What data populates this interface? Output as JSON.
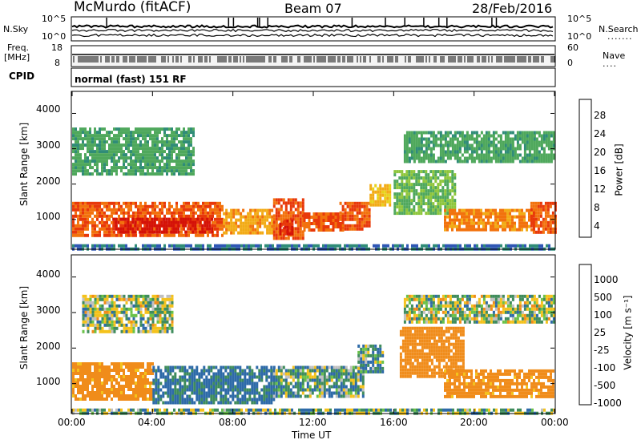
{
  "header": {
    "station": "McMurdo (fitACF)",
    "beam": "Beam 07",
    "date": "28/Feb/2016"
  },
  "noise_panel": {
    "left_label": "N.Sky",
    "right_label": "N.Search",
    "tick_top": "10^5",
    "tick_bottom": "10^0",
    "right_dots": "......."
  },
  "freq_panel": {
    "left_label_line1": "Freq.",
    "left_label_line2": "[MHz]",
    "left_tick_top": "18",
    "left_tick_bottom": "8",
    "right_label": "Nave",
    "right_tick_top": "60",
    "right_tick_bottom": "0",
    "right_dots": "...."
  },
  "cpid_panel": {
    "label": "CPID",
    "mode": "normal (fast) 151 RF"
  },
  "power_panel": {
    "ylabel": "Slant Range [km]",
    "yticks": [
      "1000",
      "2000",
      "3000",
      "4000"
    ],
    "colorbar_label": "Power [dB]",
    "colorbar_ticks": [
      "4",
      "8",
      "12",
      "16",
      "20",
      "24",
      "28"
    ],
    "colorbar_colors": [
      "#1313e8",
      "#2e56b4",
      "#2f8c77",
      "#4fa85c",
      "#8ec63c",
      "#e8d21a",
      "#f2ab16",
      "#f2720d",
      "#e8380a",
      "#d41108"
    ]
  },
  "velocity_panel": {
    "ylabel": "Slant Range [km]",
    "yticks": [
      "1000",
      "2000",
      "3000",
      "4000"
    ],
    "colorbar_label": "Velocity [m s⁻¹]",
    "colorbar_ticks": [
      "1000",
      "500",
      "100",
      "25",
      "-25",
      "-100",
      "-500",
      "-1000"
    ],
    "colorbar_colors": [
      "#1a36c8",
      "#2e6aa8",
      "#3f8c5c",
      "#6ac248",
      "#c0c0c0",
      "#f4c21c",
      "#f08c1a",
      "#e85a14",
      "#dc2a0c"
    ]
  },
  "x_axis": {
    "label": "Time UT",
    "ticks": [
      "00:00",
      "04:00",
      "08:00",
      "12:00",
      "16:00",
      "20:00",
      "00:00"
    ]
  },
  "chart_data": [
    {
      "type": "heatmap",
      "title": "Power [dB]",
      "xlabel": "Time UT",
      "ylabel": "Slant Range [km]",
      "xlim": [
        0,
        24
      ],
      "ylim": [
        180,
        4600
      ],
      "clim": [
        0,
        30
      ],
      "regions": [
        {
          "t0": 0.0,
          "t1": 7.5,
          "r0": 550,
          "r1": 1500,
          "value": 24
        },
        {
          "t0": 2.0,
          "t1": 7.0,
          "r0": 650,
          "r1": 1050,
          "value": 28
        },
        {
          "t0": 7.5,
          "t1": 10.0,
          "r0": 600,
          "r1": 1300,
          "value": 20
        },
        {
          "t0": 10.0,
          "t1": 11.5,
          "r0": 500,
          "r1": 1600,
          "value": 24
        },
        {
          "t0": 10.3,
          "t1": 11.0,
          "r0": 600,
          "r1": 1000,
          "value": 28
        },
        {
          "t0": 11.5,
          "t1": 13.5,
          "r0": 700,
          "r1": 1200,
          "value": 24
        },
        {
          "t0": 13.3,
          "t1": 14.8,
          "r0": 750,
          "r1": 1500,
          "value": 24
        },
        {
          "t0": 14.8,
          "t1": 15.8,
          "r0": 1400,
          "r1": 2000,
          "value": 18
        },
        {
          "t0": 16.0,
          "t1": 19.0,
          "r0": 1200,
          "r1": 2400,
          "value": 12
        },
        {
          "t0": 18.5,
          "t1": 23.0,
          "r0": 700,
          "r1": 1300,
          "value": 22
        },
        {
          "t0": 22.8,
          "t1": 24.0,
          "r0": 600,
          "r1": 1500,
          "value": 24
        },
        {
          "t0": 0.0,
          "t1": 24.0,
          "r0": 180,
          "r1": 300,
          "value": 6
        },
        {
          "t0": 0.0,
          "t1": 6.0,
          "r0": 2300,
          "r1": 3600,
          "value": 10
        },
        {
          "t0": 16.5,
          "t1": 24.0,
          "r0": 2600,
          "r1": 3500,
          "value": 10
        }
      ]
    },
    {
      "type": "heatmap",
      "title": "Velocity [m s⁻¹]",
      "xlabel": "Time UT",
      "ylabel": "Slant Range [km]",
      "xlim": [
        0,
        24
      ],
      "ylim": [
        180,
        4600
      ],
      "clim": [
        -1000,
        1000
      ],
      "regions": [
        {
          "t0": 0.0,
          "t1": 4.0,
          "r0": 600,
          "r1": 1600,
          "value": -200
        },
        {
          "t0": 4.0,
          "t1": 10.0,
          "r0": 500,
          "r1": 1500,
          "value": 150
        },
        {
          "t0": 10.0,
          "t1": 14.5,
          "r0": 600,
          "r1": 1500,
          "value": 60
        },
        {
          "t0": 14.2,
          "t1": 15.5,
          "r0": 1300,
          "r1": 2100,
          "value": 80
        },
        {
          "t0": 16.3,
          "t1": 19.5,
          "r0": 1200,
          "r1": 2600,
          "value": -300
        },
        {
          "t0": 18.5,
          "t1": 24.0,
          "r0": 600,
          "r1": 1400,
          "value": -200
        },
        {
          "t0": 0.5,
          "t1": 5.0,
          "r0": 2500,
          "r1": 3500,
          "value": 0
        },
        {
          "t0": 16.5,
          "t1": 24.0,
          "r0": 2700,
          "r1": 3500,
          "value": 0
        },
        {
          "t0": 0.0,
          "t1": 24.0,
          "r0": 180,
          "r1": 300,
          "value": 40
        }
      ]
    }
  ]
}
